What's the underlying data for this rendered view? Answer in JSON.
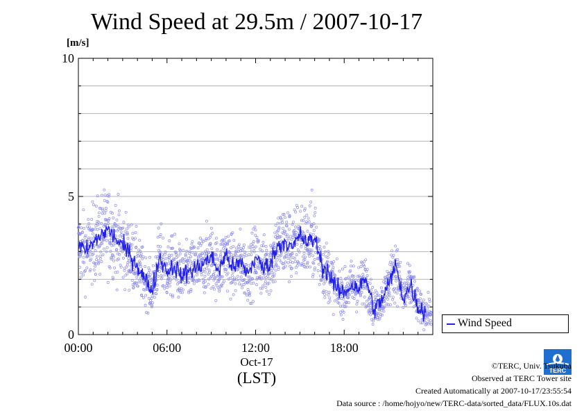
{
  "title": "Wind Speed at 29.5m / 2007-10-17",
  "unit_label": "[m/s]",
  "x_date_label": "Oct-17",
  "x_axis_label": "(LST)",
  "legend_label": "Wind Speed",
  "footer": {
    "copyright": "©TERC, Univ. Tsukuba",
    "observed": "Observed at TERC Tower site",
    "created": "Created Automatically at 2007-10-17/23:55:54",
    "source": "Data source : /home/hojyo/new/TERC-data/sorted_data/FLUX.10s.dat"
  },
  "logo_text": "TERC",
  "colors": {
    "line": "#2020e8",
    "scatter": "#8c8cf0",
    "grid": "#b4b4b4"
  },
  "chart_data": {
    "type": "line",
    "title": "Wind Speed at 29.5m / 2007-10-17",
    "ylabel": "[m/s]",
    "xlabel": "(LST)",
    "ylim": [
      0,
      10
    ],
    "xlim": [
      "00:00",
      "24:00"
    ],
    "x_ticks": [
      "00:00",
      "06:00",
      "12:00",
      "18:00"
    ],
    "y_ticks": [
      0,
      5,
      10
    ],
    "grid": "horizontal",
    "legend_position": "bottom-right outside",
    "series": [
      {
        "name": "Wind Speed",
        "style": "line with scatter of raw samples",
        "x_hours": [
          0,
          0.5,
          1,
          1.5,
          2,
          2.5,
          3,
          3.5,
          4,
          4.5,
          5,
          5.5,
          6,
          6.5,
          7,
          7.5,
          8,
          8.5,
          9,
          9.5,
          10,
          10.5,
          11,
          11.5,
          12,
          12.5,
          13,
          13.5,
          14,
          14.5,
          15,
          15.5,
          16,
          16.5,
          17,
          17.5,
          18,
          18.5,
          19,
          19.5,
          20,
          20.5,
          21,
          21.5,
          22,
          22.5,
          23,
          23.5
        ],
        "values": [
          3.2,
          3.0,
          3.3,
          3.6,
          3.8,
          3.5,
          3.2,
          2.9,
          2.5,
          2.0,
          1.6,
          2.8,
          2.3,
          2.5,
          2.1,
          2.3,
          2.4,
          2.6,
          2.8,
          2.3,
          2.9,
          2.4,
          2.6,
          2.2,
          2.8,
          2.4,
          2.6,
          3.2,
          3.4,
          3.1,
          3.6,
          3.3,
          3.5,
          2.5,
          2.2,
          1.6,
          1.5,
          1.8,
          1.7,
          2.0,
          0.9,
          1.2,
          1.8,
          2.5,
          1.3,
          1.8,
          1.0,
          0.8
        ]
      }
    ]
  }
}
